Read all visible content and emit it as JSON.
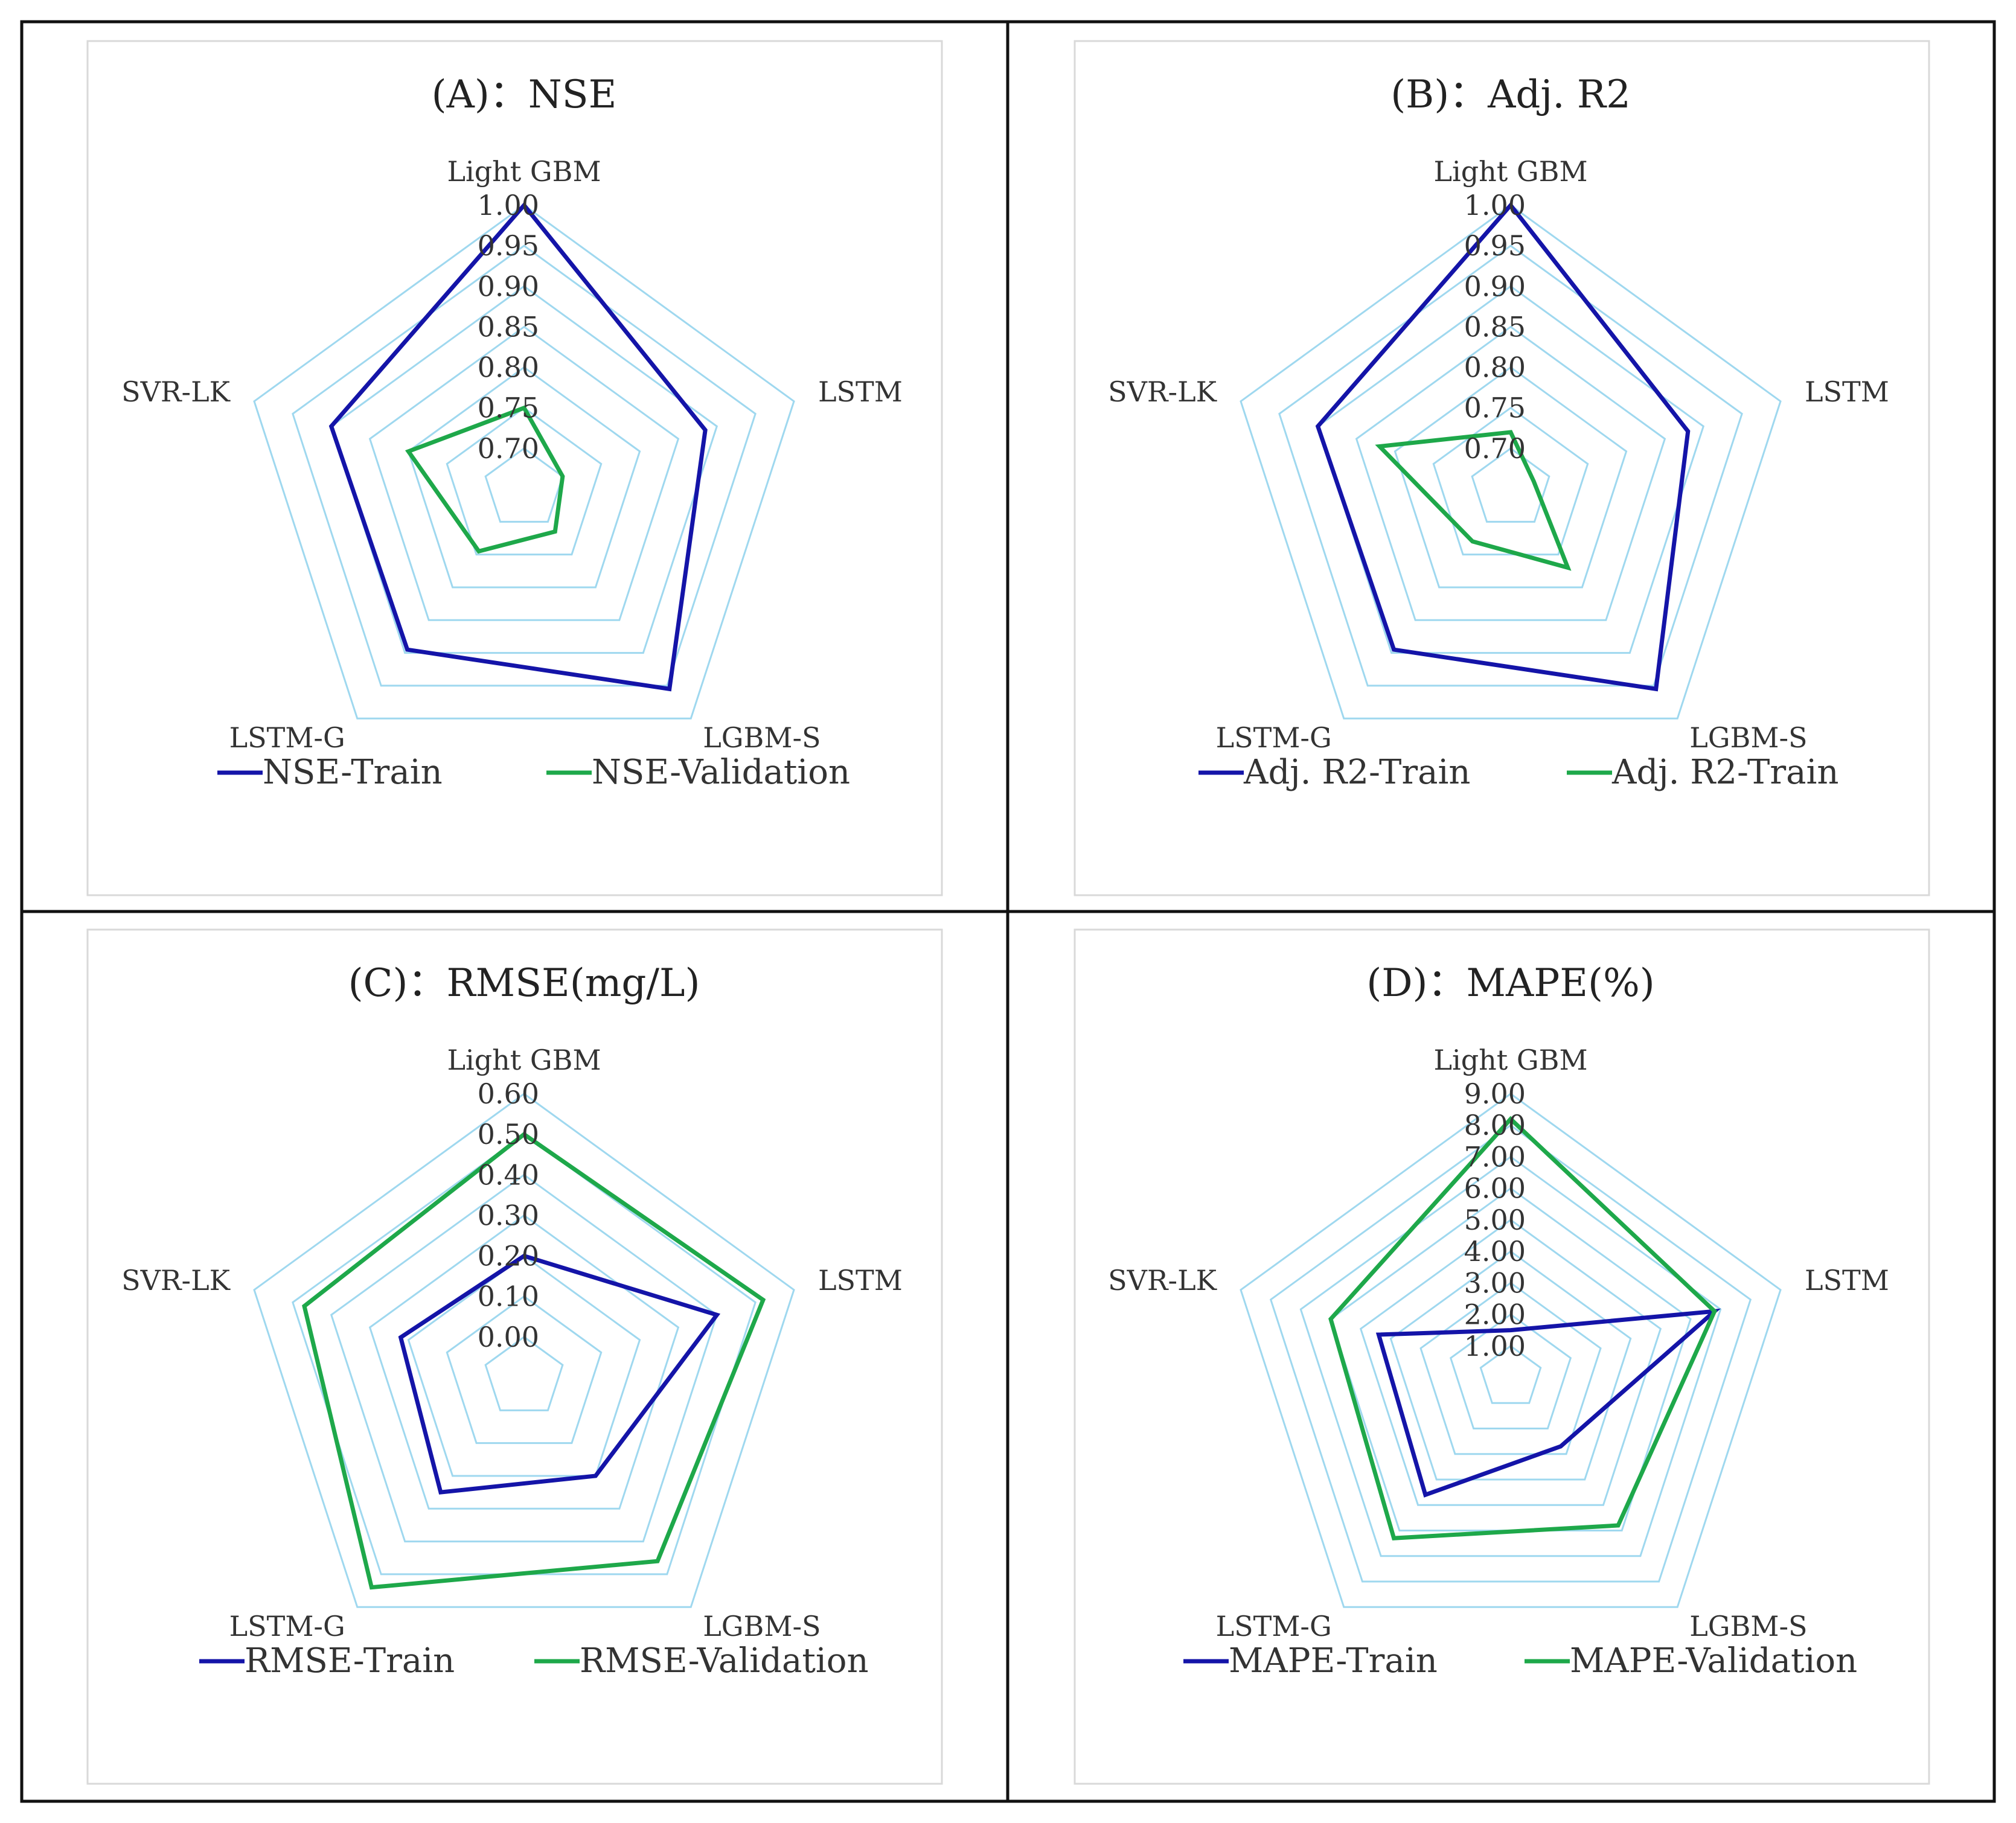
{
  "chart_data": [
    {
      "type": "radar",
      "title": "(A)：NSE",
      "categories": [
        "Light GBM",
        "LSTM",
        "LGBM-S",
        "LSTM-G",
        "SVR-LK"
      ],
      "ticks": [
        "1.00",
        "0.95",
        "0.90",
        "0.85",
        "0.80",
        "0.75",
        "0.70"
      ],
      "rlim": [
        0.65,
        1.0
      ],
      "grid": true,
      "legend": "bottom",
      "series": [
        {
          "name": "NSE-Train",
          "color": "#1414a8",
          "values": [
            1.0,
            0.885,
            0.955,
            0.895,
            0.9
          ]
        },
        {
          "name": "NSE-Validation",
          "color": "#1ea84a",
          "values": [
            0.75,
            0.7,
            0.715,
            0.745,
            0.8
          ]
        }
      ]
    },
    {
      "type": "radar",
      "title": "(B)：Adj. R2",
      "categories": [
        "Light GBM",
        "LSTM",
        "LGBM-S",
        "LSTM-G",
        "SVR-LK"
      ],
      "ticks": [
        "1.00",
        "0.95",
        "0.90",
        "0.85",
        "0.80",
        "0.75",
        "0.70"
      ],
      "rlim": [
        0.65,
        1.0
      ],
      "grid": true,
      "legend": "bottom",
      "series": [
        {
          "name": "Adj. R2-Train",
          "color": "#1414a8",
          "values": [
            1.0,
            0.88,
            0.955,
            0.895,
            0.9
          ]
        },
        {
          "name": "Adj. R2-Train",
          "color": "#1ea84a",
          "values": [
            0.72,
            0.68,
            0.77,
            0.73,
            0.82
          ]
        }
      ]
    },
    {
      "type": "radar",
      "title": "(C)：RMSE(mg/L)",
      "categories": [
        "Light GBM",
        "LSTM",
        "LGBM-S",
        "LSTM-G",
        "SVR-LK"
      ],
      "ticks": [
        "0.60",
        "0.50",
        "0.40",
        "0.30",
        "0.20",
        "0.10",
        "0.00"
      ],
      "rlim": [
        -0.1,
        0.6
      ],
      "grid": true,
      "legend": "bottom",
      "series": [
        {
          "name": "RMSE-Train",
          "color": "#1414a8",
          "values": [
            0.2,
            0.4,
            0.2,
            0.25,
            0.22
          ]
        },
        {
          "name": "RMSE-Validation",
          "color": "#1ea84a",
          "values": [
            0.5,
            0.52,
            0.46,
            0.54,
            0.47
          ]
        }
      ]
    },
    {
      "type": "radar",
      "title": "(D)：MAPE(%)",
      "categories": [
        "Light GBM",
        "LSTM",
        "LGBM-S",
        "LSTM-G",
        "SVR-LK"
      ],
      "ticks": [
        "9.00",
        "8.00",
        "7.00",
        "6.00",
        "5.00",
        "4.00",
        "3.00",
        "2.00",
        "1.00"
      ],
      "rlim": [
        0.0,
        9.0
      ],
      "grid": true,
      "legend": "bottom",
      "series": [
        {
          "name": "MAPE-Train",
          "color": "#1414a8",
          "values": [
            1.5,
            6.8,
            2.7,
            4.6,
            4.4
          ]
        },
        {
          "name": "MAPE-Validation",
          "color": "#1ea84a",
          "values": [
            8.2,
            6.8,
            5.8,
            6.3,
            6.0
          ]
        }
      ]
    }
  ]
}
